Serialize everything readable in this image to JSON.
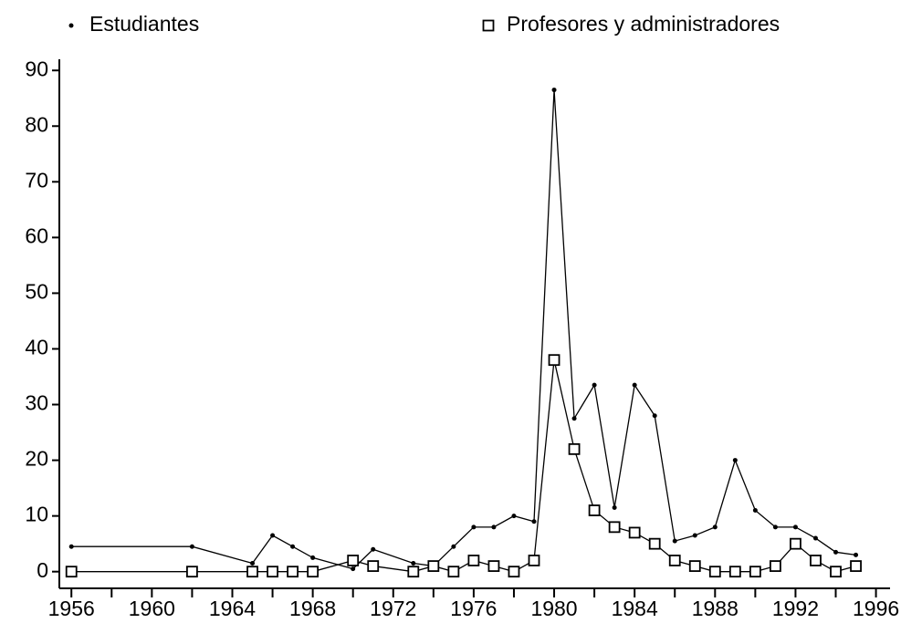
{
  "chart_data": {
    "type": "line",
    "x": [
      1956,
      1962,
      1965,
      1966,
      1967,
      1968,
      1970,
      1971,
      1973,
      1974,
      1975,
      1976,
      1977,
      1978,
      1979,
      1980,
      1981,
      1982,
      1983,
      1984,
      1985,
      1986,
      1987,
      1988,
      1989,
      1990,
      1991,
      1992,
      1993,
      1994,
      1995
    ],
    "series": [
      {
        "name": "Estudiantes",
        "color": "#000000",
        "marker": "dot",
        "values": [
          4.5,
          4.5,
          1.5,
          6.5,
          4.5,
          2.5,
          0.5,
          4,
          1.5,
          1,
          4.5,
          8,
          8,
          10,
          9,
          86.5,
          27.5,
          33.5,
          11.5,
          33.5,
          28,
          5.5,
          6.5,
          8,
          20,
          11,
          8,
          8,
          6,
          3.5,
          3
        ]
      },
      {
        "name": "Profesores y administradores",
        "color": "#000000",
        "marker": "square",
        "values": [
          0,
          0,
          0,
          0,
          0,
          0,
          2,
          1,
          0,
          1,
          0,
          2,
          1,
          0,
          2,
          38,
          22,
          11,
          8,
          7,
          5,
          2,
          1,
          0,
          0,
          0,
          1,
          5,
          2,
          0,
          1
        ]
      }
    ],
    "xlim": [
      1955.4,
      1996.7
    ],
    "xticks": [
      1956,
      1960,
      1964,
      1968,
      1972,
      1976,
      1980,
      1984,
      1988,
      1992,
      1996
    ],
    "xminorticks": [
      1958,
      1962,
      1966,
      1970,
      1974,
      1978,
      1982,
      1986,
      1990,
      1994
    ],
    "ylim": [
      -3,
      92
    ],
    "yticks": [
      0,
      10,
      20,
      30,
      40,
      50,
      60,
      70,
      80,
      90
    ],
    "legend": "top",
    "grid": false
  }
}
